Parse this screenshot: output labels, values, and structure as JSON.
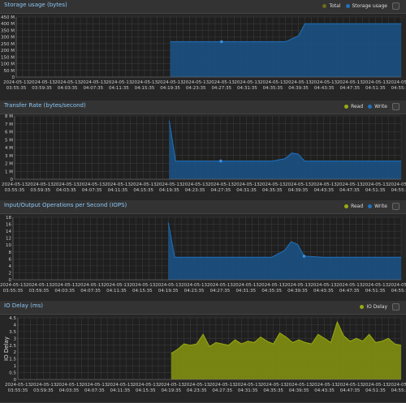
{
  "palette": {
    "blue": "#1f72be",
    "blue_fill": "#1b4f7e",
    "olive": "#9aaa10",
    "olive_fill": "#7c8a12",
    "grid": "#3f3f3f"
  },
  "x_ticks": [
    [
      "2024-05-13",
      "03:55:35"
    ],
    [
      "2024-05-13",
      "03:59:35"
    ],
    [
      "2024-05-13",
      "04:03:35"
    ],
    [
      "2024-05-13",
      "04:07:35"
    ],
    [
      "2024-05-13",
      "04:11:35"
    ],
    [
      "2024-05-13",
      "04:15:35"
    ],
    [
      "2024-05-13",
      "04:19:35"
    ],
    [
      "2024-05-13",
      "04:23:35"
    ],
    [
      "2024-05-13",
      "04:27:35"
    ],
    [
      "2024-05-13",
      "04:31:35"
    ],
    [
      "2024-05-13",
      "04:35:35"
    ],
    [
      "2024-05-13",
      "04:39:35"
    ],
    [
      "2024-05-13",
      "04:43:35"
    ],
    [
      "2024-05-13",
      "04:47:35"
    ],
    [
      "2024-05-13",
      "04:51:35"
    ],
    [
      "2024-05-13",
      "04:55:35"
    ]
  ],
  "chart_data": [
    {
      "type": "area",
      "title": "Storage usage (bytes)",
      "ylabel": "",
      "y_ticks": [
        "0",
        "50 M",
        "100 M",
        "150 M",
        "200 M",
        "250 M",
        "300 M",
        "350 M",
        "400 M",
        "450 M"
      ],
      "ylim": [
        0,
        450
      ],
      "legend": [
        {
          "label": "Total",
          "color": "#6b6b1e"
        },
        {
          "label": "Storage usage",
          "color": "#1f72be"
        }
      ],
      "series": [
        {
          "name": "Storage usage",
          "x": [
            "04:19:35",
            "04:23:35",
            "04:27:35",
            "04:31:35",
            "04:35:35",
            "04:37:35",
            "04:39:35",
            "04:40:35",
            "04:43:35",
            "04:47:35",
            "04:51:35",
            "04:55:35"
          ],
          "values": [
            265,
            265,
            265,
            265,
            265,
            265,
            310,
            400,
            400,
            400,
            400,
            400
          ]
        }
      ]
    },
    {
      "type": "area",
      "title": "Transfer Rate (bytes/second)",
      "ylabel": "",
      "y_ticks": [
        "0",
        "1 M",
        "2 M",
        "3 M",
        "4 M",
        "5 M",
        "6 M",
        "7 M",
        "8 M"
      ],
      "ylim": [
        0,
        8
      ],
      "legend": [
        {
          "label": "Read",
          "color": "#9aaa10"
        },
        {
          "label": "Write",
          "color": "#1f72be"
        }
      ],
      "series": [
        {
          "name": "Write",
          "x": [
            "04:19:35",
            "04:20:35",
            "04:23:35",
            "04:27:35",
            "04:31:35",
            "04:35:35",
            "04:37:35",
            "04:38:35",
            "04:39:35",
            "04:40:35",
            "04:43:35",
            "04:47:35",
            "04:51:35",
            "04:55:35"
          ],
          "values": [
            7.4,
            2.3,
            2.3,
            2.3,
            2.3,
            2.3,
            2.6,
            3.3,
            3.2,
            2.3,
            2.3,
            2.3,
            2.3,
            2.3
          ]
        }
      ]
    },
    {
      "type": "area",
      "title": "Input/Output Operations per Second (IOPS)",
      "ylabel": "",
      "y_ticks": [
        "0",
        "2",
        "4",
        "6",
        "8",
        "10",
        "12",
        "14",
        "16",
        "18"
      ],
      "ylim": [
        0,
        18
      ],
      "legend": [
        {
          "label": "Read",
          "color": "#9aaa10"
        },
        {
          "label": "Write",
          "color": "#1f72be"
        }
      ],
      "series": [
        {
          "name": "Write",
          "x": [
            "04:19:35",
            "04:20:35",
            "04:23:35",
            "04:27:35",
            "04:31:35",
            "04:35:35",
            "04:37:35",
            "04:38:35",
            "04:39:35",
            "04:40:35",
            "04:43:35",
            "04:47:35",
            "04:51:35",
            "04:55:35"
          ],
          "values": [
            16.5,
            6.5,
            6.5,
            6.5,
            6.5,
            6.5,
            8.5,
            11,
            10.2,
            6.8,
            6.5,
            6.5,
            6.5,
            6.5
          ]
        }
      ]
    },
    {
      "type": "area",
      "title": "IO Delay (ms)",
      "ylabel": "IO Delay",
      "y_ticks": [
        "0",
        "0.5",
        "1",
        "1.5",
        "2",
        "2.5",
        "3",
        "3.5",
        "4",
        "4.5"
      ],
      "ylim": [
        0,
        4.5
      ],
      "legend": [
        {
          "label": "IO Delay",
          "color": "#9aaa10"
        }
      ],
      "series": [
        {
          "name": "IO Delay",
          "x": [
            "04:19:35",
            "04:20:35",
            "04:21:35",
            "04:22:35",
            "04:23:35",
            "04:24:35",
            "04:25:35",
            "04:26:35",
            "04:27:35",
            "04:28:35",
            "04:29:35",
            "04:30:35",
            "04:31:35",
            "04:32:35",
            "04:33:35",
            "04:34:35",
            "04:35:35",
            "04:36:35",
            "04:37:35",
            "04:38:35",
            "04:39:35",
            "04:40:35",
            "04:41:35",
            "04:42:35",
            "04:43:35",
            "04:44:35",
            "04:45:35",
            "04:46:35",
            "04:47:35",
            "04:48:35",
            "04:49:35",
            "04:50:35",
            "04:51:35",
            "04:52:35",
            "04:53:35",
            "04:54:35",
            "04:55:35"
          ],
          "values": [
            1.9,
            2.2,
            2.6,
            2.5,
            2.6,
            3.3,
            2.4,
            2.7,
            2.6,
            2.5,
            2.9,
            2.6,
            2.8,
            2.7,
            3.1,
            2.8,
            2.6,
            3.4,
            3.1,
            2.7,
            2.9,
            2.7,
            2.6,
            3.3,
            3.0,
            2.7,
            4.2,
            3.2,
            2.8,
            3.0,
            2.8,
            3.3,
            2.7,
            2.8,
            3.0,
            2.6,
            2.5
          ]
        }
      ]
    }
  ]
}
